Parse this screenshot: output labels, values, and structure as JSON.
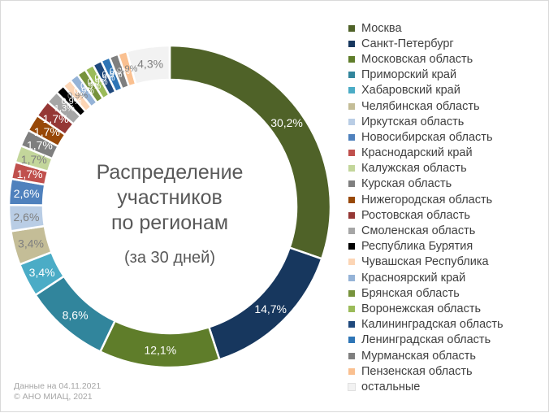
{
  "chart_data": {
    "type": "pie",
    "title": "Распределение\nучастников\nпо регионам",
    "subtitle": "(за 30 дней)",
    "legend_position": "right",
    "slices": [
      {
        "label": "Москва",
        "value": 30.2,
        "display": "30,2%",
        "color": "#4f6228"
      },
      {
        "label": "Санкт-Петербург",
        "value": 14.7,
        "display": "14,7%",
        "color": "#17375e"
      },
      {
        "label": "Московская область",
        "value": 12.1,
        "display": "12,1%",
        "color": "#5f7d2a"
      },
      {
        "label": "Приморский край",
        "value": 8.6,
        "display": "8,6%",
        "color": "#31859c"
      },
      {
        "label": "Хабаровский край",
        "value": 3.4,
        "display": "3,4%",
        "color": "#4bacc6"
      },
      {
        "label": "Челябинская область",
        "value": 3.4,
        "display": "3,4%",
        "color": "#c4bd97"
      },
      {
        "label": "Иркутская область",
        "value": 2.6,
        "display": "2,6%",
        "color": "#b9cde5"
      },
      {
        "label": "Новосибирская область",
        "value": 2.6,
        "display": "2,6%",
        "color": "#4f81bd"
      },
      {
        "label": "Краснодарский край",
        "value": 1.7,
        "display": "1,7%",
        "color": "#c0504d"
      },
      {
        "label": "Калужская область",
        "value": 1.7,
        "display": "1,7%",
        "color": "#c3d69b"
      },
      {
        "label": "Курская область",
        "value": 1.7,
        "display": "1,7%",
        "color": "#7f7f7f"
      },
      {
        "label": "Нижегородская область",
        "value": 1.7,
        "display": "1,7%",
        "color": "#984807"
      },
      {
        "label": "Ростовская область",
        "value": 1.7,
        "display": "1,7%",
        "color": "#953735"
      },
      {
        "label": "Смоленская область",
        "value": 1.3,
        "display": "1,3%",
        "color": "#a6a6a6"
      },
      {
        "label": "Республика Бурятия",
        "value": 0.9,
        "display": "0,9%",
        "color": "#000000"
      },
      {
        "label": "Чувашская Республика",
        "value": 0.9,
        "display": "0,9%",
        "color": "#fcd5b5"
      },
      {
        "label": "Красноярский край",
        "value": 0.9,
        "display": "0,9%",
        "color": "#95b3d7"
      },
      {
        "label": "Брянская область",
        "value": 0.9,
        "display": "0,9%",
        "color": "#77933c"
      },
      {
        "label": "Воронежская область",
        "value": 0.9,
        "display": "0,9%",
        "color": "#9bbb59"
      },
      {
        "label": "Калининградская область",
        "value": 0.9,
        "display": "0,9%",
        "color": "#1f497d"
      },
      {
        "label": "Ленинградская область",
        "value": 0.9,
        "display": "0,9%",
        "color": "#2e75b6"
      },
      {
        "label": "Мурманская область",
        "value": 0.9,
        "display": "0,9%",
        "color": "#7f7f7f"
      },
      {
        "label": "Пензенская область",
        "value": 0.9,
        "display": "0,9%",
        "color": "#fac090"
      },
      {
        "label": "остальные",
        "value": 4.3,
        "display": "4,3%",
        "color": "#f2f2f2"
      }
    ]
  },
  "footnote": {
    "line1": "Данные на 04.11.2021",
    "line2": "© АНО МИАЦ, 2021"
  }
}
